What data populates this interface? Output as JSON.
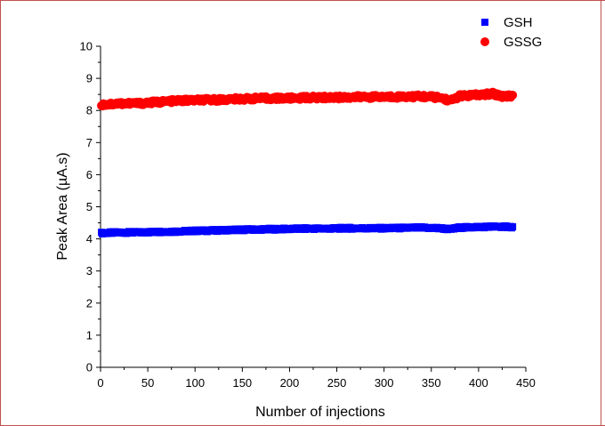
{
  "chart_data": {
    "type": "scatter",
    "title": "",
    "xlabel": "Number of injections",
    "ylabel": "Peak Area (µA.s)",
    "xlim": [
      0,
      450
    ],
    "ylim": [
      0,
      10
    ],
    "xticks": [
      "0",
      "50",
      "100",
      "150",
      "200",
      "250",
      "300",
      "350",
      "400",
      "450"
    ],
    "yticks": [
      "0",
      "1",
      "2",
      "3",
      "4",
      "5",
      "6",
      "7",
      "8",
      "9",
      "10"
    ],
    "grid": false,
    "legend_position": "top-right",
    "series": [
      {
        "name": "GSH",
        "marker": "square",
        "color": "#0000ff",
        "x": [
          1,
          20,
          40,
          60,
          80,
          100,
          120,
          140,
          160,
          180,
          200,
          220,
          240,
          260,
          280,
          300,
          320,
          340,
          360,
          370,
          380,
          400,
          415,
          425,
          436
        ],
        "y": [
          4.18,
          4.2,
          4.2,
          4.22,
          4.23,
          4.25,
          4.26,
          4.28,
          4.29,
          4.3,
          4.31,
          4.32,
          4.32,
          4.33,
          4.33,
          4.33,
          4.34,
          4.35,
          4.33,
          4.3,
          4.35,
          4.37,
          4.38,
          4.38,
          4.37
        ]
      },
      {
        "name": "GSSG",
        "marker": "circle",
        "color": "#ff0000",
        "x": [
          1,
          20,
          40,
          60,
          80,
          100,
          120,
          140,
          160,
          180,
          200,
          220,
          240,
          260,
          280,
          300,
          320,
          340,
          360,
          370,
          380,
          400,
          415,
          425,
          436
        ],
        "y": [
          8.18,
          8.22,
          8.22,
          8.26,
          8.3,
          8.32,
          8.33,
          8.35,
          8.37,
          8.38,
          8.38,
          8.4,
          8.4,
          8.41,
          8.42,
          8.42,
          8.43,
          8.44,
          8.4,
          8.3,
          8.45,
          8.48,
          8.52,
          8.45,
          8.46
        ]
      }
    ]
  }
}
